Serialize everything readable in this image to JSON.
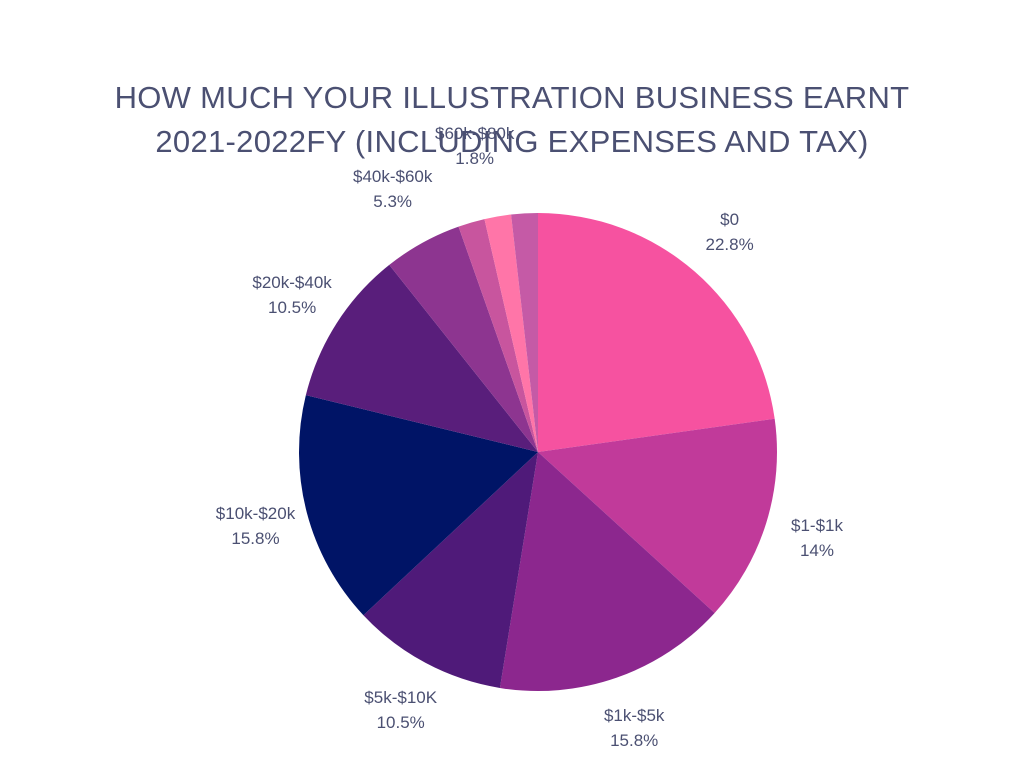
{
  "chart_data": {
    "type": "pie",
    "title_lines": [
      "HOW MUCH YOUR ILLUSTRATION BUSINESS EARNT",
      "2021-2022FY (INCLUDING EXPENSES AND TAX)"
    ],
    "start_angle_deg": 0,
    "direction": "clockwise",
    "slices": [
      {
        "label": "$0",
        "value": 22.8,
        "value_text": "22.8%",
        "color": "#f652a0"
      },
      {
        "label": "$1-$1k",
        "value": 14.0,
        "value_text": "14%",
        "color": "#c13a9a"
      },
      {
        "label": "$1k-$5k",
        "value": 15.8,
        "value_text": "15.8%",
        "color": "#8c278e"
      },
      {
        "label": "$5k-$10K",
        "value": 10.5,
        "value_text": "10.5%",
        "color": "#4f1a79"
      },
      {
        "label": "$10k-$20k",
        "value": 15.8,
        "value_text": "15.8%",
        "color": "#001466"
      },
      {
        "label": "$20k-$40k",
        "value": 10.5,
        "value_text": "10.5%",
        "color": "#591e7b"
      },
      {
        "label": "$40k-$60k",
        "value": 5.3,
        "value_text": "5.3%",
        "color": "#8d3590"
      },
      {
        "label": "",
        "value": 1.8,
        "value_text": "",
        "color": "#c8559e"
      },
      {
        "label": "$60k-$80k",
        "value": 1.8,
        "value_text": "1.8%",
        "color": "#ff75a8"
      },
      {
        "label": "",
        "value": 1.8,
        "value_text": "",
        "color": "#c55aa6"
      }
    ]
  }
}
